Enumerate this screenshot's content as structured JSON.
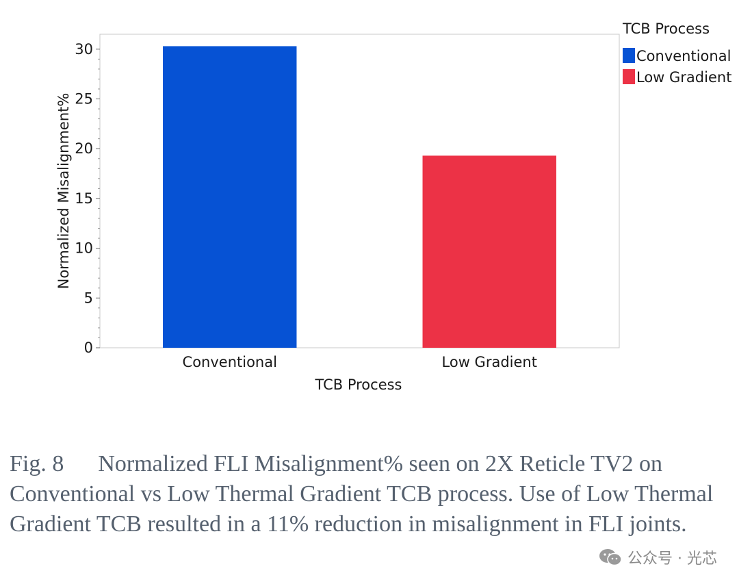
{
  "chart_data": {
    "type": "bar",
    "categories": [
      "Conventional",
      "Low Gradient"
    ],
    "values": [
      30.3,
      19.3
    ],
    "colors": [
      "#0652d4",
      "#ec3246"
    ],
    "title": "",
    "xlabel": "TCB Process",
    "ylabel": "Normalized Misalignment%",
    "ylim": [
      0,
      31.5
    ],
    "yticks": [
      0,
      5,
      10,
      15,
      20,
      25,
      30
    ],
    "grid": false,
    "legend": {
      "title": "TCB Process",
      "placement": "top-right",
      "entries": [
        {
          "label": "Conventional",
          "color": "#0652d4"
        },
        {
          "label": "Low Gradient",
          "color": "#ec3246"
        }
      ]
    }
  },
  "caption": {
    "figure_number": "Fig.  8",
    "text": "Normalized FLI Misalignment% seen on 2X Reticle TV2 on Conventional vs Low Thermal Gradient TCB process. Use of Low Thermal Gradient TCB resulted in a 11% reduction in misalignment in FLI joints."
  },
  "watermark": {
    "text": "公众号 · 光芯",
    "icon": "wechat-icon"
  }
}
